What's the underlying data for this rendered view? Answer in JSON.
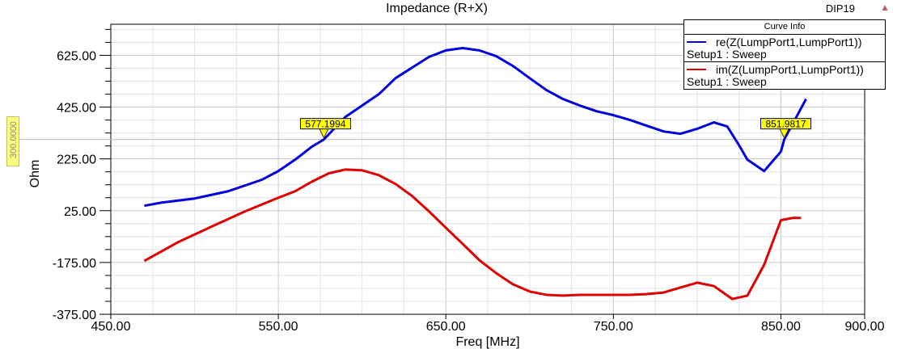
{
  "window": {
    "corner_label": "DIP19",
    "warning_icon": "warning-triangle-icon"
  },
  "legend": {
    "header": "Curve Info",
    "entries": [
      {
        "name": "re(Z(LumpPort1,LumpPort1))",
        "setup": "Setup1 : Sweep",
        "color": "#0000e0"
      },
      {
        "name": "im(Z(LumpPort1,LumpPort1))",
        "setup": "Setup1 : Sweep",
        "color": "#e00000"
      }
    ]
  },
  "y_marker_label": "300.0000",
  "chart_data": {
    "type": "line",
    "title": "Impedance (R+X)",
    "xlabel": "Freq [MHz]",
    "ylabel": "Ohm",
    "xlim": [
      450,
      900
    ],
    "ylim": [
      -375,
      745
    ],
    "xticks": [
      "450.00",
      "550.00",
      "650.00",
      "750.00",
      "850.00",
      "900.00"
    ],
    "xtick_values": [
      450,
      550,
      650,
      750,
      850,
      900
    ],
    "yticks": [
      "625.00",
      "425.00",
      "225.00",
      "25.00",
      "-175.00",
      "-375.00"
    ],
    "ytick_values": [
      625,
      425,
      225,
      25,
      -175,
      -375
    ],
    "grid": true,
    "legend_position": "top-right",
    "series": [
      {
        "name": "re(Z(LumpPort1,LumpPort1))",
        "color": "#0000e0",
        "x": [
          470,
          480,
          500,
          520,
          540,
          550,
          560,
          570,
          577.2,
          590,
          610,
          620,
          630,
          640,
          650,
          660,
          670,
          680,
          690,
          700,
          710,
          720,
          730,
          740,
          750,
          760,
          770,
          780,
          790,
          800,
          810,
          818,
          825,
          830,
          840,
          850,
          852,
          858,
          865
        ],
        "y": [
          44,
          56,
          72,
          100,
          144,
          178,
          222,
          272,
          300,
          387,
          475,
          537,
          578,
          619,
          644,
          653,
          644,
          622,
          584,
          537,
          491,
          456,
          431,
          409,
          394,
          375,
          353,
          331,
          322,
          341,
          366,
          350,
          278,
          222,
          178,
          253,
          300,
          372,
          456
        ]
      },
      {
        "name": "im(Z(LumpPort1,LumpPort1))",
        "color": "#e00000",
        "x": [
          470,
          490,
          510,
          530,
          550,
          560,
          570,
          580,
          590,
          600,
          610,
          620,
          630,
          640,
          650,
          660,
          670,
          680,
          690,
          700,
          710,
          720,
          730,
          740,
          750,
          760,
          770,
          780,
          790,
          800,
          810,
          821,
          830,
          840,
          850,
          857,
          862
        ],
        "y": [
          -169,
          -97,
          -37,
          22,
          75,
          100,
          137,
          169,
          184,
          181,
          162,
          128,
          81,
          22,
          -41,
          -103,
          -166,
          -216,
          -259,
          -287,
          -300,
          -303,
          -300,
          -300,
          -300,
          -300,
          -297,
          -291,
          -272,
          -253,
          -266,
          -316,
          -303,
          -184,
          -12,
          -3,
          -3
        ]
      }
    ],
    "markers": [
      {
        "label": "577.1994",
        "x": 577.2,
        "y": 300
      },
      {
        "label": "851.9817",
        "x": 851.98,
        "y": 300
      }
    ],
    "marker_line_y": 300
  }
}
